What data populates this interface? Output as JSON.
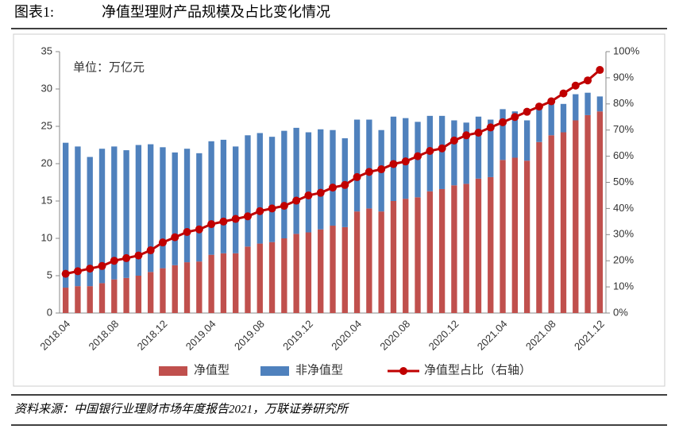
{
  "chart_data": {
    "type": "stacked_bar_line",
    "figure_label": "图表1:",
    "title": "净值型理财产品规模及占比变化情况",
    "annotation": "单位：万亿元",
    "source": "资料来源：中国银行业理财市场年度报告2021，万联证券研究所",
    "categories": [
      "2018.04",
      null,
      null,
      null,
      "2018.08",
      null,
      null,
      null,
      "2018.12",
      null,
      null,
      null,
      "2019.04",
      null,
      null,
      null,
      "2019.08",
      null,
      null,
      null,
      "2019.12",
      null,
      null,
      null,
      "2020.04",
      null,
      null,
      null,
      "2020.08",
      null,
      null,
      null,
      "2020.12",
      null,
      null,
      null,
      "2021.04",
      null,
      null,
      null,
      "2021.08",
      null,
      null,
      null,
      "2021.12"
    ],
    "series": [
      {
        "name": "净值型",
        "color": "#c0504d",
        "values": [
          3.4,
          3.6,
          3.6,
          4.0,
          4.5,
          4.7,
          5.0,
          5.5,
          6.0,
          6.4,
          6.8,
          6.9,
          7.8,
          8.0,
          8.0,
          8.9,
          9.3,
          9.5,
          10.0,
          10.6,
          10.8,
          11.2,
          11.7,
          11.5,
          13.6,
          14.0,
          13.6,
          15.0,
          15.3,
          15.5,
          16.3,
          16.6,
          17.1,
          17.3,
          18.0,
          18.2,
          20.5,
          20.8,
          20.4,
          22.9,
          23.8,
          24.2,
          25.8,
          26.5,
          27.0
        ]
      },
      {
        "name": "非净值型",
        "color": "#4f81bd",
        "values": [
          19.4,
          18.7,
          17.3,
          18.0,
          17.8,
          17.1,
          17.5,
          17.1,
          16.2,
          15.1,
          15.2,
          14.5,
          15.2,
          15.2,
          14.3,
          14.9,
          14.8,
          14.1,
          14.4,
          14.2,
          13.4,
          13.4,
          12.8,
          11.9,
          12.3,
          11.9,
          10.9,
          11.3,
          10.8,
          10.1,
          10.1,
          9.8,
          8.7,
          8.2,
          8.3,
          7.7,
          6.8,
          6.2,
          5.4,
          5.1,
          4.8,
          3.8,
          3.5,
          3.0,
          2.0
        ]
      },
      {
        "name": "净值型占比（右轴）",
        "color": "#c00000",
        "axis": "y2",
        "values": [
          15,
          16,
          17,
          18,
          20,
          21,
          22,
          24,
          27,
          29,
          31,
          32,
          34,
          35,
          36,
          37,
          39,
          40,
          41,
          43,
          45,
          46,
          48,
          49,
          52,
          54,
          55,
          57,
          58,
          60,
          62,
          63,
          66,
          68,
          69,
          71,
          73,
          75,
          77,
          79,
          81,
          84,
          87,
          89,
          93
        ]
      }
    ],
    "ylim": [
      0,
      35
    ],
    "yticks": [
      0,
      5,
      10,
      15,
      20,
      25,
      30,
      35
    ],
    "y2lim": [
      0,
      100
    ],
    "y2ticks": [
      {
        "value": 0,
        "label": "0%"
      },
      {
        "value": 10,
        "label": "10%"
      },
      {
        "value": 20,
        "label": "20%"
      },
      {
        "value": 30,
        "label": "30%"
      },
      {
        "value": 40,
        "label": "40%"
      },
      {
        "value": 50,
        "label": "50%"
      },
      {
        "value": 60,
        "label": "60%"
      },
      {
        "value": 70,
        "label": "70%"
      },
      {
        "value": 80,
        "label": "80%"
      },
      {
        "value": 90,
        "label": "90%"
      },
      {
        "value": 100,
        "label": "100%"
      }
    ]
  }
}
